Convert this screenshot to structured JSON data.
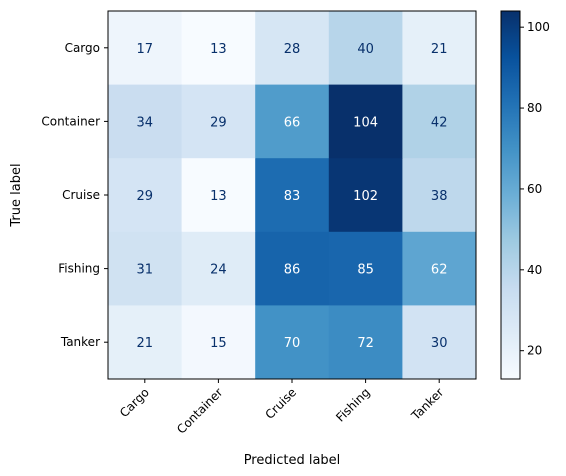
{
  "chart_data": {
    "type": "heatmap",
    "title": "",
    "xlabel": "Predicted label",
    "ylabel": "True label",
    "x_categories": [
      "Cargo",
      "Container",
      "Cruise",
      "Fishing",
      "Tanker"
    ],
    "y_categories": [
      "Cargo",
      "Container",
      "Cruise",
      "Fishing",
      "Tanker"
    ],
    "values": [
      [
        17,
        13,
        28,
        40,
        21
      ],
      [
        34,
        29,
        66,
        104,
        42
      ],
      [
        29,
        13,
        83,
        102,
        38
      ],
      [
        31,
        24,
        86,
        85,
        62
      ],
      [
        21,
        15,
        70,
        72,
        30
      ]
    ],
    "colormap": "Blues",
    "color_range": [
      13,
      104
    ],
    "colorbar": {
      "ticks": [
        20,
        40,
        60,
        80,
        100
      ],
      "placement": "right"
    },
    "x_tick_rotation_deg": 45,
    "grid": false
  }
}
